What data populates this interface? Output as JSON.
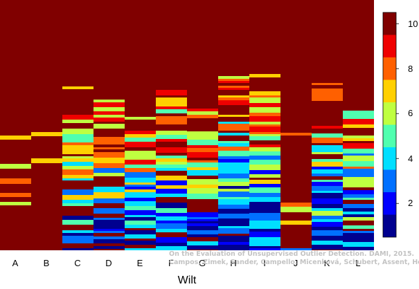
{
  "chart_data": {
    "type": "heatmap",
    "title": "",
    "xlabel": "Wilt",
    "ylabel": "",
    "categories": [
      "A",
      "B",
      "C",
      "D",
      "E",
      "F",
      "G",
      "H",
      "I",
      "J",
      "K",
      "L"
    ],
    "colorbar": {
      "range": [
        0.5,
        10.5
      ],
      "levels": 10,
      "ticks": [
        "2",
        "4",
        "6",
        "8",
        "10"
      ],
      "colors": [
        "#00008f",
        "#0000ff",
        "#0070ff",
        "#00dfff",
        "#50ffaf",
        "#bfff40",
        "#ffd000",
        "#ff6000",
        "#ef0000",
        "#800000"
      ]
    },
    "grid": false,
    "legend": "colorbar-right",
    "note": "On the Evaluation of Unsupervised Outlier Detection. DAMI, 2015.",
    "note_authors": "Campos, Zimek, Sander, Campello, Micenková, Schubert, Assent, Houle"
  }
}
